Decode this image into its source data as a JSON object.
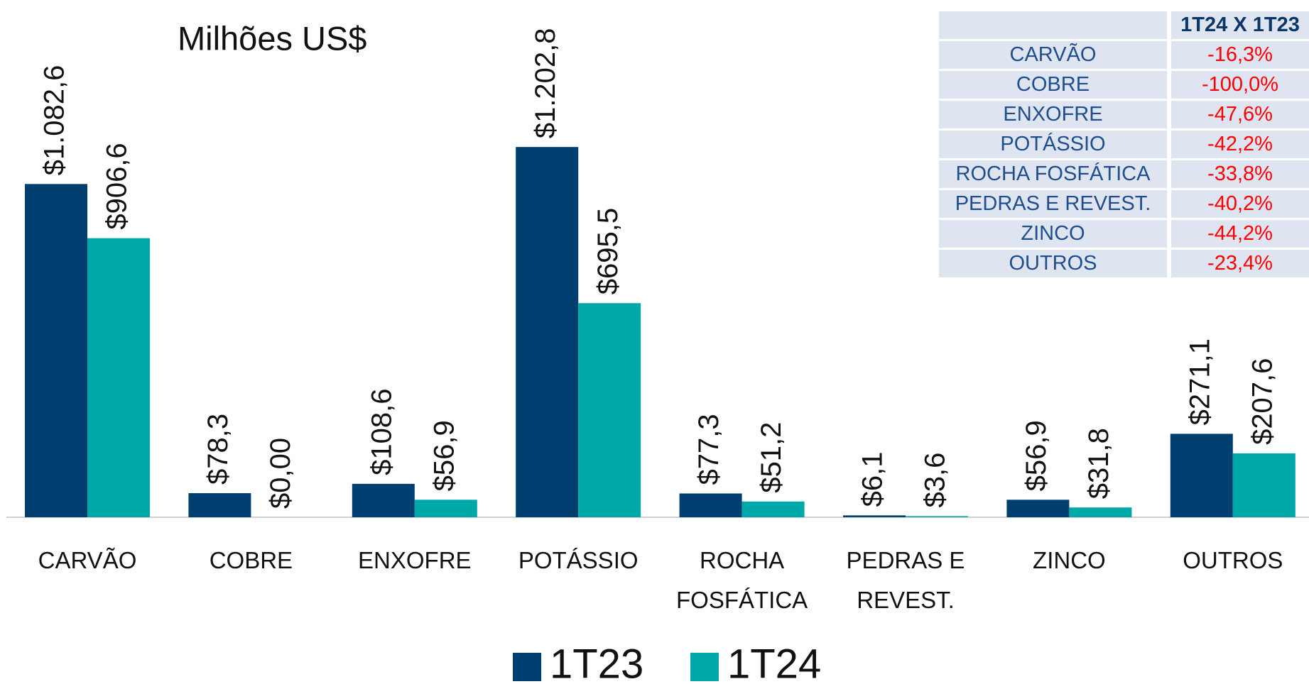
{
  "chart_data": {
    "type": "bar",
    "title": "Milhões US$",
    "categories": [
      "CARVÃO",
      "COBRE",
      "ENXOFRE",
      "POTÁSSIO",
      "ROCHA FOSFÁTICA",
      "PEDRAS E REVEST.",
      "ZINCO",
      "OUTROS"
    ],
    "series": [
      {
        "name": "1T23",
        "color": "#003f6f",
        "values": [
          1082.6,
          78.3,
          108.6,
          1202.8,
          77.3,
          6.1,
          56.9,
          271.1
        ],
        "value_labels": [
          "$1.082,6",
          "$78,3",
          "$108,6",
          "$1.202,8",
          "$77,3",
          "$6,1",
          "$56,9",
          "$271,1"
        ]
      },
      {
        "name": "1T24",
        "color": "#00a9a9",
        "values": [
          906.6,
          0,
          56.9,
          695.5,
          51.2,
          3.6,
          31.8,
          207.6
        ],
        "value_labels": [
          "$906,6",
          "$0,00",
          "$56,9",
          "$695,5",
          "$51,2",
          "$3,6",
          "$31,8",
          "$207,6"
        ]
      }
    ],
    "ylim": [
      0,
      1300
    ],
    "grid": false,
    "legend": "bottom"
  },
  "table": {
    "header": "1T24 X 1T23",
    "rows": [
      [
        "CARVÃO",
        "-16,3%"
      ],
      [
        "COBRE",
        "-100,0%"
      ],
      [
        "ENXOFRE",
        "-47,6%"
      ],
      [
        "POTÁSSIO",
        "-42,2%"
      ],
      [
        "ROCHA FOSFÁTICA",
        "-33,8%"
      ],
      [
        "PEDRAS E REVEST.",
        "-40,2%"
      ],
      [
        "ZINCO",
        "-44,2%"
      ],
      [
        "OUTROS",
        "-23,4%"
      ]
    ]
  }
}
